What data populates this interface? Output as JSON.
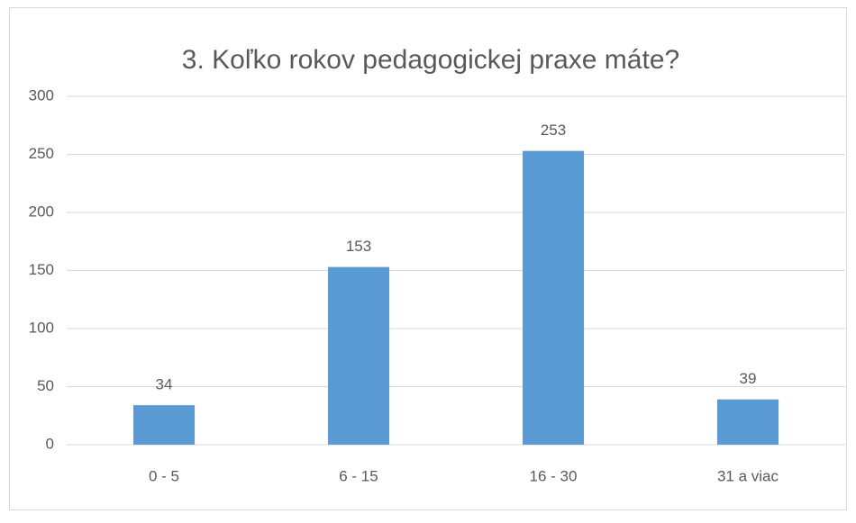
{
  "chart_data": {
    "type": "bar",
    "title": "3. Koľko rokov pedagogickej praxe máte?",
    "categories": [
      "0 - 5",
      "6 - 15",
      "16 - 30",
      "31 a viac"
    ],
    "values": [
      34,
      153,
      253,
      39
    ],
    "color": "#5b9bd5",
    "ylim": [
      0,
      300
    ],
    "yticks": [
      0,
      50,
      100,
      150,
      200,
      250,
      300
    ],
    "grid": true,
    "data_labels": true
  }
}
